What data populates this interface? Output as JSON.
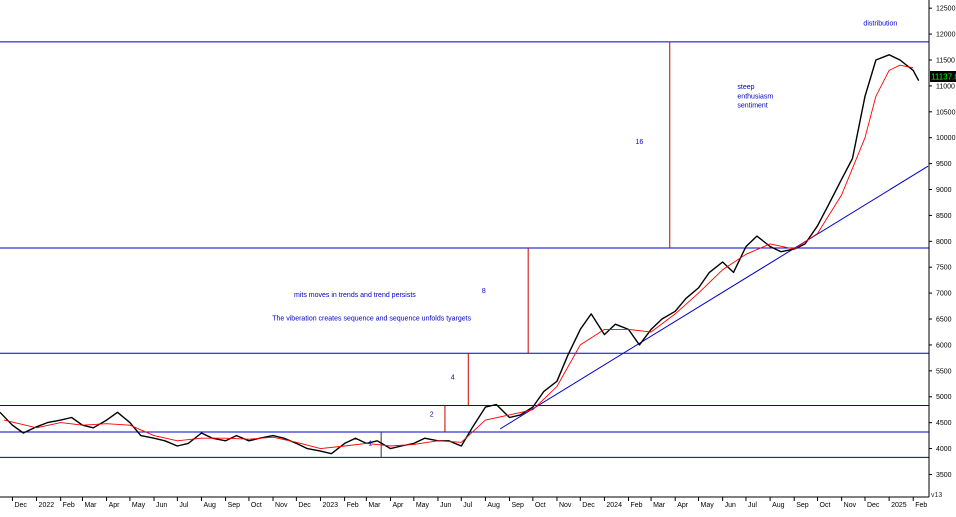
{
  "chart_data": {
    "type": "line",
    "title": "",
    "xlabel": "",
    "ylabel": "",
    "last_value_label": "11137.8",
    "corner_label": "v13",
    "ylim": [
      3200,
      12600
    ],
    "y_ticks": [
      3500,
      4000,
      4500,
      5000,
      5500,
      6000,
      6500,
      7000,
      7500,
      8000,
      8500,
      9000,
      9500,
      10000,
      10500,
      11000,
      11500,
      12000,
      12500
    ],
    "x_ticks": [
      {
        "label": "Dec",
        "t": "2021-12-01"
      },
      {
        "label": "2022",
        "t": "2022-01-01"
      },
      {
        "label": "Feb",
        "t": "2022-02-01"
      },
      {
        "label": "Mar",
        "t": "2022-03-01"
      },
      {
        "label": "Apr",
        "t": "2022-04-01"
      },
      {
        "label": "May",
        "t": "2022-05-01"
      },
      {
        "label": "Jun",
        "t": "2022-06-01"
      },
      {
        "label": "Jul",
        "t": "2022-07-01"
      },
      {
        "label": "Aug",
        "t": "2022-08-01"
      },
      {
        "label": "Sep",
        "t": "2022-09-01"
      },
      {
        "label": "Oct",
        "t": "2022-10-01"
      },
      {
        "label": "Nov",
        "t": "2022-11-01"
      },
      {
        "label": "Dec",
        "t": "2022-12-01"
      },
      {
        "label": "2023",
        "t": "2023-01-01"
      },
      {
        "label": "Feb",
        "t": "2023-02-01"
      },
      {
        "label": "Mar",
        "t": "2023-03-01"
      },
      {
        "label": "Apr",
        "t": "2023-04-01"
      },
      {
        "label": "May",
        "t": "2023-05-01"
      },
      {
        "label": "Jun",
        "t": "2023-06-01"
      },
      {
        "label": "Jul",
        "t": "2023-07-01"
      },
      {
        "label": "Aug",
        "t": "2023-08-01"
      },
      {
        "label": "Sep",
        "t": "2023-09-01"
      },
      {
        "label": "Oct",
        "t": "2023-10-01"
      },
      {
        "label": "Nov",
        "t": "2023-11-01"
      },
      {
        "label": "Dec",
        "t": "2023-12-01"
      },
      {
        "label": "2024",
        "t": "2024-01-01"
      },
      {
        "label": "Feb",
        "t": "2024-02-01"
      },
      {
        "label": "Mar",
        "t": "2024-03-01"
      },
      {
        "label": "Apr",
        "t": "2024-04-01"
      },
      {
        "label": "May",
        "t": "2024-05-01"
      },
      {
        "label": "Jun",
        "t": "2024-06-01"
      },
      {
        "label": "Jul",
        "t": "2024-07-01"
      },
      {
        "label": "Aug",
        "t": "2024-08-01"
      },
      {
        "label": "Sep",
        "t": "2024-09-01"
      },
      {
        "label": "Oct",
        "t": "2024-10-01"
      },
      {
        "label": "Nov",
        "t": "2024-11-01"
      },
      {
        "label": "Dec",
        "t": "2024-12-01"
      },
      {
        "label": "2025",
        "t": "2025-01-01"
      },
      {
        "label": "Feb",
        "t": "2025-02-01"
      }
    ],
    "series": [
      {
        "color": "#000000",
        "points": [
          [
            "2021-11-15",
            4700
          ],
          [
            "2021-12-01",
            4450
          ],
          [
            "2021-12-15",
            4300
          ],
          [
            "2022-01-01",
            4420
          ],
          [
            "2022-01-15",
            4500
          ],
          [
            "2022-02-01",
            4550
          ],
          [
            "2022-02-15",
            4600
          ],
          [
            "2022-03-01",
            4450
          ],
          [
            "2022-03-15",
            4400
          ],
          [
            "2022-04-01",
            4550
          ],
          [
            "2022-04-15",
            4700
          ],
          [
            "2022-05-01",
            4500
          ],
          [
            "2022-05-15",
            4250
          ],
          [
            "2022-06-01",
            4200
          ],
          [
            "2022-06-15",
            4150
          ],
          [
            "2022-07-01",
            4050
          ],
          [
            "2022-07-15",
            4100
          ],
          [
            "2022-08-01",
            4300
          ],
          [
            "2022-08-15",
            4200
          ],
          [
            "2022-09-01",
            4150
          ],
          [
            "2022-09-15",
            4250
          ],
          [
            "2022-10-01",
            4150
          ],
          [
            "2022-10-15",
            4200
          ],
          [
            "2022-11-01",
            4250
          ],
          [
            "2022-11-15",
            4200
          ],
          [
            "2022-12-01",
            4100
          ],
          [
            "2022-12-15",
            4000
          ],
          [
            "2023-01-01",
            3950
          ],
          [
            "2023-01-15",
            3900
          ],
          [
            "2023-02-01",
            4100
          ],
          [
            "2023-02-15",
            4200
          ],
          [
            "2023-03-01",
            4100
          ],
          [
            "2023-03-15",
            4150
          ],
          [
            "2023-04-01",
            4000
          ],
          [
            "2023-04-15",
            4050
          ],
          [
            "2023-05-01",
            4100
          ],
          [
            "2023-05-15",
            4200
          ],
          [
            "2023-06-01",
            4150
          ],
          [
            "2023-06-15",
            4150
          ],
          [
            "2023-07-01",
            4050
          ],
          [
            "2023-07-15",
            4400
          ],
          [
            "2023-08-01",
            4800
          ],
          [
            "2023-08-15",
            4850
          ],
          [
            "2023-09-01",
            4600
          ],
          [
            "2023-09-15",
            4650
          ],
          [
            "2023-10-01",
            4800
          ],
          [
            "2023-10-15",
            5100
          ],
          [
            "2023-11-01",
            5300
          ],
          [
            "2023-11-15",
            5800
          ],
          [
            "2023-12-01",
            6300
          ],
          [
            "2023-12-15",
            6600
          ],
          [
            "2024-01-01",
            6200
          ],
          [
            "2024-01-15",
            6400
          ],
          [
            "2024-02-01",
            6300
          ],
          [
            "2024-02-15",
            6000
          ],
          [
            "2024-03-01",
            6300
          ],
          [
            "2024-03-15",
            6500
          ],
          [
            "2024-04-01",
            6650
          ],
          [
            "2024-04-15",
            6900
          ],
          [
            "2024-05-01",
            7100
          ],
          [
            "2024-05-15",
            7400
          ],
          [
            "2024-06-01",
            7600
          ],
          [
            "2024-06-15",
            7400
          ],
          [
            "2024-07-01",
            7900
          ],
          [
            "2024-07-15",
            8100
          ],
          [
            "2024-08-01",
            7900
          ],
          [
            "2024-08-15",
            7800
          ],
          [
            "2024-09-01",
            7850
          ],
          [
            "2024-09-15",
            7950
          ],
          [
            "2024-10-01",
            8300
          ],
          [
            "2024-10-15",
            8700
          ],
          [
            "2024-11-01",
            9200
          ],
          [
            "2024-11-15",
            9600
          ],
          [
            "2024-12-01",
            10800
          ],
          [
            "2024-12-15",
            11500
          ],
          [
            "2025-01-01",
            11600
          ],
          [
            "2025-01-15",
            11500
          ],
          [
            "2025-02-01",
            11300
          ],
          [
            "2025-02-08",
            11100
          ]
        ]
      },
      {
        "color": "#ff0000",
        "points": [
          [
            "2021-11-20",
            4550
          ],
          [
            "2022-01-01",
            4400
          ],
          [
            "2022-02-01",
            4500
          ],
          [
            "2022-03-01",
            4450
          ],
          [
            "2022-04-01",
            4480
          ],
          [
            "2022-05-01",
            4450
          ],
          [
            "2022-06-01",
            4250
          ],
          [
            "2022-07-01",
            4150
          ],
          [
            "2022-08-01",
            4200
          ],
          [
            "2022-09-01",
            4200
          ],
          [
            "2022-10-01",
            4180
          ],
          [
            "2022-11-01",
            4220
          ],
          [
            "2022-12-01",
            4120
          ],
          [
            "2023-01-01",
            4000
          ],
          [
            "2023-02-01",
            4050
          ],
          [
            "2023-03-01",
            4100
          ],
          [
            "2023-04-01",
            4050
          ],
          [
            "2023-05-01",
            4080
          ],
          [
            "2023-06-01",
            4150
          ],
          [
            "2023-07-01",
            4120
          ],
          [
            "2023-08-01",
            4550
          ],
          [
            "2023-09-01",
            4650
          ],
          [
            "2023-10-01",
            4750
          ],
          [
            "2023-11-01",
            5200
          ],
          [
            "2023-12-01",
            6000
          ],
          [
            "2024-01-01",
            6300
          ],
          [
            "2024-02-01",
            6300
          ],
          [
            "2024-03-01",
            6250
          ],
          [
            "2024-04-01",
            6600
          ],
          [
            "2024-05-01",
            7000
          ],
          [
            "2024-06-01",
            7450
          ],
          [
            "2024-07-01",
            7750
          ],
          [
            "2024-08-01",
            7950
          ],
          [
            "2024-09-01",
            7850
          ],
          [
            "2024-10-01",
            8150
          ],
          [
            "2024-11-01",
            8900
          ],
          [
            "2024-12-01",
            10000
          ],
          [
            "2024-12-15",
            10800
          ],
          [
            "2025-01-01",
            11300
          ],
          [
            "2025-01-15",
            11400
          ],
          [
            "2025-02-01",
            11350
          ]
        ]
      }
    ],
    "horizontal_lines": [
      {
        "y": 11850,
        "color": "#0000cc"
      },
      {
        "y": 7870,
        "color": "#0000cc"
      },
      {
        "y": 5840,
        "color": "#0000cc"
      },
      {
        "y": 4830,
        "color": "#0000cc"
      },
      {
        "y": 4320,
        "color": "#0000cc"
      },
      {
        "y": 3830,
        "color": "#0000cc"
      }
    ],
    "trendlines": [
      {
        "from": [
          "2023-08-20",
          4380
        ],
        "to": [
          "2025-02-20",
          9450
        ],
        "color": "#0000cc"
      }
    ],
    "vertical_lines": [
      {
        "t": "2023-06-10",
        "y1": 4320,
        "y2": 4830,
        "color": "#cc0000"
      },
      {
        "t": "2023-07-10",
        "y1": 4830,
        "y2": 5840,
        "color": "#cc0000"
      },
      {
        "t": "2023-09-25",
        "y1": 5840,
        "y2": 7870,
        "color": "#cc0000"
      },
      {
        "t": "2024-03-25",
        "y1": 7870,
        "y2": 11850,
        "color": "#cc0000"
      },
      {
        "t": "2023-03-20",
        "y1": 3830,
        "y2": 4320,
        "color": "#333333"
      }
    ],
    "annotations": [
      {
        "text": "2",
        "t": "2023-05-24",
        "y": 4620,
        "anchor": "middle"
      },
      {
        "text": "4",
        "t": "2023-06-20",
        "y": 5330,
        "anchor": "middle"
      },
      {
        "text": "8",
        "t": "2023-07-30",
        "y": 7000,
        "anchor": "middle"
      },
      {
        "text": "16",
        "t": "2024-02-15",
        "y": 9880,
        "anchor": "middle"
      },
      {
        "text": "1",
        "t": "2023-03-06",
        "y": 4060,
        "anchor": "middle"
      },
      {
        "text": "mits moves in trends and trend persists",
        "t": "2022-11-28",
        "y": 6930,
        "anchor": "start"
      },
      {
        "text": "The viberation creates sequence and sequence unfolds tyargets",
        "t": "2022-10-31",
        "y": 6470,
        "anchor": "start"
      },
      {
        "text": "steep",
        "t": "2024-06-20",
        "y": 10940,
        "anchor": "start"
      },
      {
        "text": "enthusiasm",
        "t": "2024-06-20",
        "y": 10760,
        "anchor": "start"
      },
      {
        "text": "sentiment",
        "t": "2024-06-20",
        "y": 10580,
        "anchor": "start"
      },
      {
        "text": "distribution",
        "t": "2024-11-29",
        "y": 12170,
        "anchor": "start"
      }
    ],
    "grid": false,
    "legend": "none"
  }
}
